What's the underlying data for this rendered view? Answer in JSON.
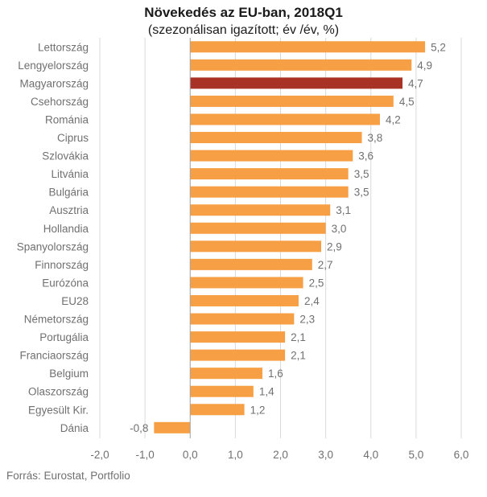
{
  "chart_data": {
    "type": "bar",
    "orientation": "horizontal",
    "title": "Növekedés az EU-ban, 2018Q1",
    "subtitle": "(szezonálisan igazított; év /év, %)",
    "categories": [
      "Lettország",
      "Lengyelország",
      "Magyarország",
      "Csehország",
      "Románia",
      "Ciprus",
      "Szlovákia",
      "Litvánia",
      "Bulgária",
      "Ausztria",
      "Hollandia",
      "Spanyolország",
      "Finnország",
      "Eurózóna",
      "EU28",
      "Németország",
      "Portugália",
      "Franciaország",
      "Belgium",
      "Olaszország",
      "Egyesült Kir.",
      "Dánia"
    ],
    "values": [
      5.2,
      4.9,
      4.7,
      4.5,
      4.2,
      3.8,
      3.6,
      3.5,
      3.5,
      3.1,
      3.0,
      2.9,
      2.7,
      2.5,
      2.4,
      2.3,
      2.1,
      2.1,
      1.6,
      1.4,
      1.2,
      -0.8
    ],
    "value_labels": [
      "5,2",
      "4,9",
      "4,7",
      "4,5",
      "4,2",
      "3,8",
      "3,6",
      "3,5",
      "3,5",
      "3,1",
      "3,0",
      "2,9",
      "2,7",
      "2,5",
      "2,4",
      "2,3",
      "2,1",
      "2,1",
      "1,6",
      "1,4",
      "1,2",
      "-0,8"
    ],
    "xlim": [
      -2.0,
      6.0
    ],
    "x_ticks": [
      -2.0,
      -1.0,
      0.0,
      1.0,
      2.0,
      3.0,
      4.0,
      5.0,
      6.0
    ],
    "x_tick_labels": [
      "-2,0",
      "-1,0",
      "0,0",
      "1,0",
      "2,0",
      "3,0",
      "4,0",
      "5,0",
      "6,0"
    ],
    "grid": "vertical",
    "colors": {
      "default": "#F79F45",
      "highlight": "#A93226",
      "grid": "#D9D9D9",
      "axis": "#A6A6A6",
      "text": "#707070"
    },
    "highlight_category": "Magyarország"
  },
  "source": "Forrás: Eurostat, Portfolio"
}
